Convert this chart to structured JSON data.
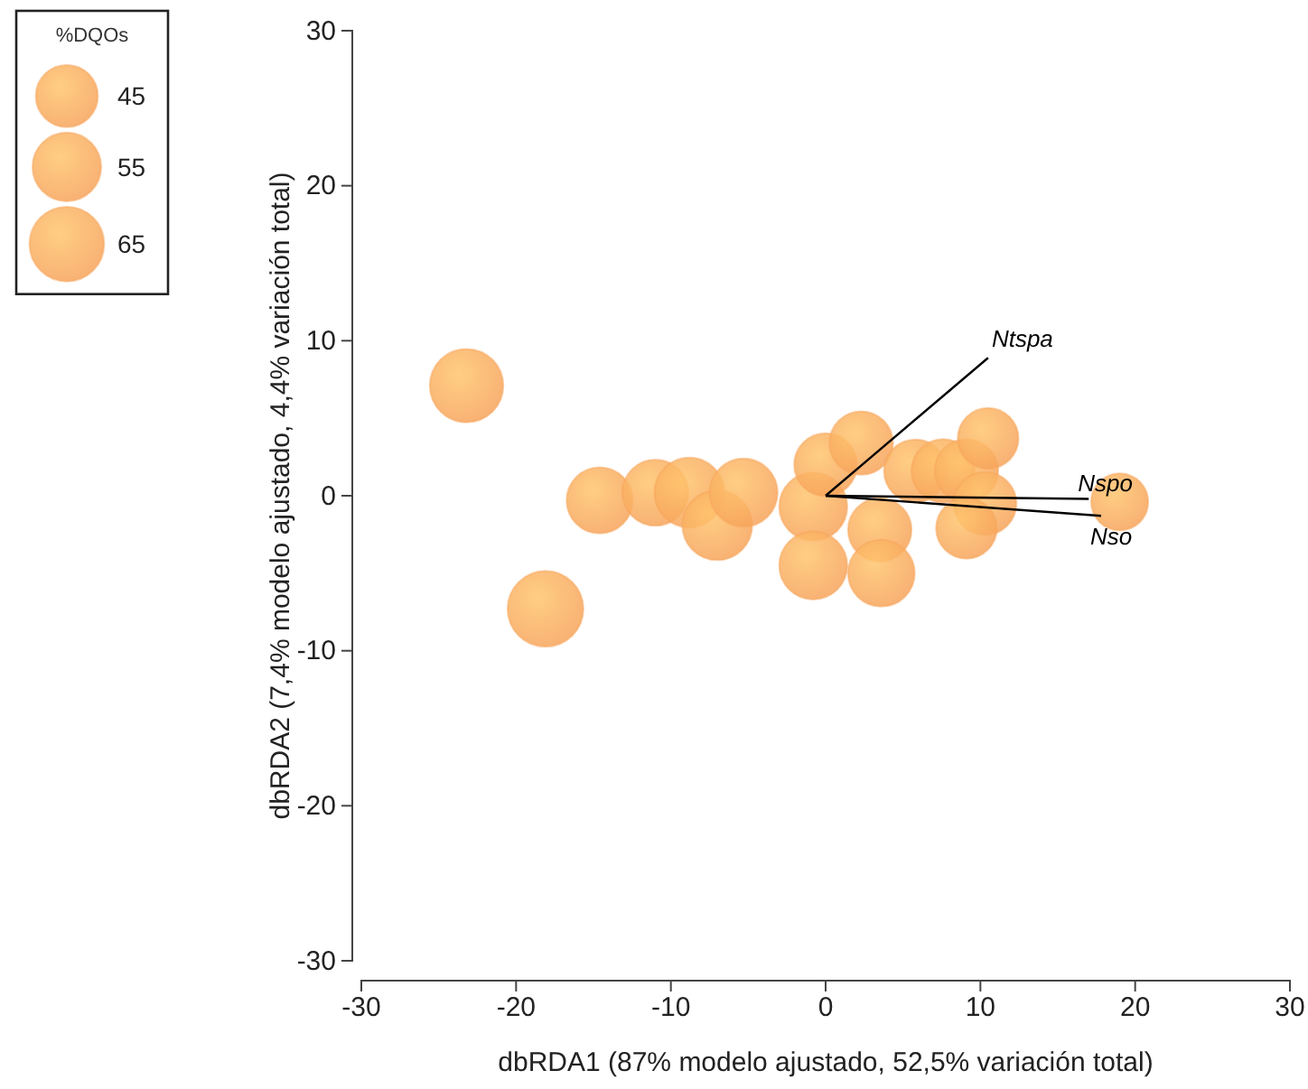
{
  "chart_data": {
    "type": "bubble",
    "xlabel": "dbRDA1 (87% modelo ajustado, 52,5% variación total)",
    "ylabel": "dbRDA2 (7,4% modelo ajustado, 4,4% variación total)",
    "xlim": [
      -30,
      30
    ],
    "ylim": [
      -30,
      30
    ],
    "xticks": [
      -30,
      -20,
      -10,
      0,
      10,
      20,
      30
    ],
    "yticks": [
      -30,
      -20,
      -10,
      0,
      10,
      20,
      30
    ],
    "grid": false,
    "legend_title": "%DQOs",
    "size_legend": [
      45,
      55,
      65
    ],
    "marker": "circle",
    "series": [
      {
        "type": "bubble",
        "color": "#f7a55c",
        "x": [
          -23.2,
          -18.1,
          -14.6,
          -11.0,
          -8.8,
          -7.0,
          -5.3,
          -0.8,
          0,
          2.3,
          -0.8,
          3.5,
          3.6,
          5.8,
          7.6,
          9.1,
          10.5,
          10.3,
          9.1,
          19.0
        ],
        "values": [
          7.1,
          -7.3,
          -0.3,
          0.2,
          0.2,
          -1.9,
          0.2,
          -0.7,
          2,
          3.4,
          -4.5,
          -2.2,
          -5.0,
          1.6,
          1.6,
          1.6,
          3.7,
          -0.5,
          -2.1,
          -0.4
        ],
        "sizes": [
          63,
          67,
          51,
          51,
          57,
          57,
          54,
          54,
          46,
          47,
          54,
          47,
          52,
          46,
          47,
          47,
          43,
          46,
          43,
          38
        ]
      },
      {
        "type": "line",
        "name": "Ntspa",
        "color": "#000000",
        "line_style": "solid",
        "marker": "none",
        "x": [
          0,
          10.5
        ],
        "values": [
          0,
          8.9
        ]
      },
      {
        "type": "line",
        "name": "Nspo",
        "color": "#000000",
        "line_style": "solid",
        "marker": "none",
        "x": [
          0,
          17.0
        ],
        "values": [
          0,
          -0.2
        ]
      },
      {
        "type": "line",
        "name": "Nso",
        "color": "#000000",
        "line_style": "solid",
        "marker": "none",
        "x": [
          0,
          17.8
        ],
        "values": [
          0,
          -1.3
        ]
      }
    ]
  }
}
